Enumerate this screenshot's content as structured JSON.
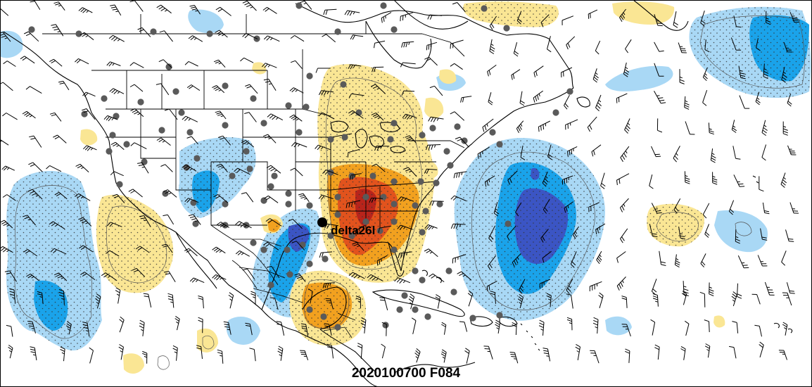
{
  "valid_time_label": "2020100700 F084",
  "storm": {
    "name": "delta26l"
  },
  "colors": {
    "neg_light": "#a9d8f5",
    "neg_mid": "#1aa3ea",
    "neg_dark": "#3b55c4",
    "pos_light": "#fae694",
    "pos_mid": "#f2a11f",
    "pos_dark": "#e2531d",
    "station": "#5a5a5a",
    "coast": "#000000",
    "frame": "#000000"
  },
  "layers": [
    "shaded-anomaly",
    "stippling",
    "contours",
    "coastlines",
    "state-borders",
    "station-dots",
    "wind-barbs"
  ]
}
